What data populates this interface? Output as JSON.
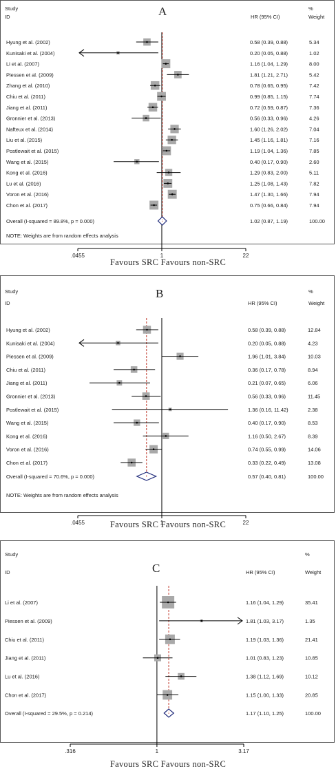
{
  "colors": {
    "box": "#a9a9a9",
    "line": "#000000",
    "diamond": "#1f2a7a",
    "ref_line": "#c0392b"
  },
  "chart_data": [
    {
      "type": "forest",
      "panel_label": "A",
      "header": {
        "study": "Study",
        "id": "ID",
        "hr": "HR (95% CI)",
        "pct": "%",
        "weight": "Weight"
      },
      "scale": "log",
      "xlim": [
        0.0455,
        22
      ],
      "xticks": [
        {
          "value": 0.0455,
          "label": ".0455"
        },
        {
          "value": 1,
          "label": "1"
        },
        {
          "value": 22,
          "label": "22"
        }
      ],
      "overall_ref": 1.02,
      "studies": [
        {
          "study": "Hyung et al. (2002)",
          "hr": 0.58,
          "lo": 0.39,
          "hi": 0.88,
          "hr_text": "0.58 (0.39, 0.88)",
          "weight": "5.34"
        },
        {
          "study": "Kunisaki et al. (2004)",
          "hr": 0.2,
          "lo": 0.05,
          "hi": 0.88,
          "hr_text": "0.20 (0.05, 0.88)",
          "weight": "1.02",
          "arrow_left": true
        },
        {
          "study": "Li et al. (2007)",
          "hr": 1.16,
          "lo": 1.04,
          "hi": 1.29,
          "hr_text": "1.16 (1.04, 1.29)",
          "weight": "8.00"
        },
        {
          "study": "Piessen et al. (2009)",
          "hr": 1.81,
          "lo": 1.21,
          "hi": 2.71,
          "hr_text": "1.81 (1.21, 2.71)",
          "weight": "5.42"
        },
        {
          "study": "Zhang et al. (2010)",
          "hr": 0.78,
          "lo": 0.65,
          "hi": 0.95,
          "hr_text": "0.78 (0.65, 0.95)",
          "weight": "7.42"
        },
        {
          "study": "Chiu et al. (2011)",
          "hr": 0.99,
          "lo": 0.85,
          "hi": 1.15,
          "hr_text": "0.99 (0.85, 1.15)",
          "weight": "7.74"
        },
        {
          "study": "Jiang et al. (2011)",
          "hr": 0.72,
          "lo": 0.59,
          "hi": 0.87,
          "hr_text": "0.72 (0.59, 0.87)",
          "weight": "7.36"
        },
        {
          "study": "Gronnier et al. (2013)",
          "hr": 0.56,
          "lo": 0.33,
          "hi": 0.96,
          "hr_text": "0.56 (0.33, 0.96)",
          "weight": "4.26"
        },
        {
          "study": "Nafteux et al. (2014)",
          "hr": 1.6,
          "lo": 1.26,
          "hi": 2.02,
          "hr_text": "1.60 (1.26, 2.02)",
          "weight": "7.04"
        },
        {
          "study": "Liu et al. (2015)",
          "hr": 1.45,
          "lo": 1.16,
          "hi": 1.81,
          "hr_text": "1.45 (1.16, 1.81)",
          "weight": "7.16"
        },
        {
          "study": "Postlewait et al. (2015)",
          "hr": 1.19,
          "lo": 1.04,
          "hi": 1.36,
          "hr_text": "1.19 (1.04, 1.36)",
          "weight": "7.85"
        },
        {
          "study": "Wang et al. (2015)",
          "hr": 0.4,
          "lo": 0.17,
          "hi": 0.9,
          "hr_text": "0.40 (0.17, 0.90)",
          "weight": "2.60"
        },
        {
          "study": "Kong et al. (2016)",
          "hr": 1.29,
          "lo": 0.83,
          "hi": 2.0,
          "hr_text": "1.29 (0.83, 2.00)",
          "weight": "5.11"
        },
        {
          "study": "Lu et al. (2016)",
          "hr": 1.25,
          "lo": 1.08,
          "hi": 1.43,
          "hr_text": "1.25 (1.08, 1.43)",
          "weight": "7.82"
        },
        {
          "study": "Voron et al. (2016)",
          "hr": 1.47,
          "lo": 1.3,
          "hi": 1.66,
          "hr_text": "1.47 (1.30, 1.66)",
          "weight": "7.94"
        },
        {
          "study": "Chon et al. (2017)",
          "hr": 0.75,
          "lo": 0.66,
          "hi": 0.84,
          "hr_text": "0.75 (0.66, 0.84)",
          "weight": "7.94"
        }
      ],
      "overall": {
        "label": "Overall  (I-squared = 89.8%, p = 0.000)",
        "hr": 1.02,
        "lo": 0.87,
        "hi": 1.19,
        "hr_text": "1.02 (0.87, 1.19)",
        "weight": "100.00"
      },
      "note": "NOTE: Weights are from random effects analysis",
      "favours": "Favours SRC   Favours non-SRC"
    },
    {
      "type": "forest",
      "panel_label": "B",
      "header": {
        "study": "Study",
        "id": "ID",
        "hr": "HR (95% CI)",
        "pct": "%",
        "weight": "Weight"
      },
      "scale": "log",
      "xlim": [
        0.0455,
        22
      ],
      "xticks": [
        {
          "value": 0.0455,
          "label": ".0455"
        },
        {
          "value": 1,
          "label": "1"
        },
        {
          "value": 22,
          "label": "22"
        }
      ],
      "overall_ref": 0.57,
      "studies": [
        {
          "study": "Hyung et al. (2002)",
          "hr": 0.58,
          "lo": 0.39,
          "hi": 0.88,
          "hr_text": "0.58 (0.39, 0.88)",
          "weight": "12.84"
        },
        {
          "study": "Kunisaki et al. (2004)",
          "hr": 0.2,
          "lo": 0.05,
          "hi": 0.88,
          "hr_text": "0.20 (0.05, 0.88)",
          "weight": "4.23",
          "arrow_left": true
        },
        {
          "study": "Piessen et al. (2009)",
          "hr": 1.96,
          "lo": 1.01,
          "hi": 3.84,
          "hr_text": "1.96 (1.01, 3.84)",
          "weight": "10.03"
        },
        {
          "study": "Chiu et al. (2011)",
          "hr": 0.36,
          "lo": 0.17,
          "hi": 0.78,
          "hr_text": "0.36 (0.17, 0.78)",
          "weight": "8.94"
        },
        {
          "study": "Jiang et al. (2011)",
          "hr": 0.21,
          "lo": 0.07,
          "hi": 0.65,
          "hr_text": "0.21 (0.07, 0.65)",
          "weight": "6.06"
        },
        {
          "study": "Gronnier et al. (2013)",
          "hr": 0.56,
          "lo": 0.33,
          "hi": 0.96,
          "hr_text": "0.56 (0.33, 0.96)",
          "weight": "11.45"
        },
        {
          "study": "Postlewait et al. (2015)",
          "hr": 1.36,
          "lo": 0.16,
          "hi": 11.42,
          "hr_text": "1.36 (0.16, 11.42)",
          "weight": "2.38"
        },
        {
          "study": "Wang et al. (2015)",
          "hr": 0.4,
          "lo": 0.17,
          "hi": 0.9,
          "hr_text": "0.40 (0.17, 0.90)",
          "weight": "8.53"
        },
        {
          "study": "Kong et al. (2016)",
          "hr": 1.16,
          "lo": 0.5,
          "hi": 2.67,
          "hr_text": "1.16 (0.50, 2.67)",
          "weight": "8.39"
        },
        {
          "study": "Voron et al. (2016)",
          "hr": 0.74,
          "lo": 0.55,
          "hi": 0.99,
          "hr_text": "0.74 (0.55, 0.99)",
          "weight": "14.06"
        },
        {
          "study": "Chon et al. (2017)",
          "hr": 0.33,
          "lo": 0.22,
          "hi": 0.49,
          "hr_text": "0.33 (0.22, 0.49)",
          "weight": "13.08"
        }
      ],
      "overall": {
        "label": "Overall  (I-squared = 70.6%, p = 0.000)",
        "hr": 0.57,
        "lo": 0.4,
        "hi": 0.81,
        "hr_text": "0.57 (0.40, 0.81)",
        "weight": "100.00"
      },
      "note": "NOTE: Weights are from random effects analysis",
      "favours": "Favours SRC   Favours non-SRC"
    },
    {
      "type": "forest",
      "panel_label": "C",
      "header": {
        "study": "Study",
        "id": "ID",
        "hr": "HR (95% CI)",
        "pct": "%",
        "weight": "Weight"
      },
      "scale": "log",
      "xlim": [
        0.316,
        3.17
      ],
      "xticks": [
        {
          "value": 0.316,
          "label": ".316"
        },
        {
          "value": 1,
          "label": "1"
        },
        {
          "value": 3.17,
          "label": "3.17"
        }
      ],
      "overall_ref": 1.17,
      "studies": [
        {
          "study": "Li et al. (2007)",
          "hr": 1.16,
          "lo": 1.04,
          "hi": 1.29,
          "hr_text": "1.16 (1.04, 1.29)",
          "weight": "35.41"
        },
        {
          "study": "Piessen et al. (2009)",
          "hr": 1.81,
          "lo": 1.03,
          "hi": 3.17,
          "hr_text": "1.81 (1.03, 3.17)",
          "weight": "1.35",
          "arrow_right": true
        },
        {
          "study": "Chiu et al. (2011)",
          "hr": 1.19,
          "lo": 1.03,
          "hi": 1.36,
          "hr_text": "1.19 (1.03, 1.36)",
          "weight": "21.41"
        },
        {
          "study": "Jiang et al. (2011)",
          "hr": 1.01,
          "lo": 0.83,
          "hi": 1.23,
          "hr_text": "1.01 (0.83, 1.23)",
          "weight": "10.85"
        },
        {
          "study": "Lu et al. (2016)",
          "hr": 1.38,
          "lo": 1.12,
          "hi": 1.69,
          "hr_text": "1.38 (1.12, 1.69)",
          "weight": "10.12"
        },
        {
          "study": "Chon et al. (2017)",
          "hr": 1.15,
          "lo": 1.0,
          "hi": 1.33,
          "hr_text": "1.15 (1.00, 1.33)",
          "weight": "20.85"
        }
      ],
      "overall": {
        "label": "Overall  (I-squared = 29.5%, p = 0.214)",
        "hr": 1.17,
        "lo": 1.1,
        "hi": 1.25,
        "hr_text": "1.17 (1.10, 1.25)",
        "weight": "100.00"
      },
      "note": "",
      "favours": "Favours SRC   Favours non-SRC"
    }
  ]
}
